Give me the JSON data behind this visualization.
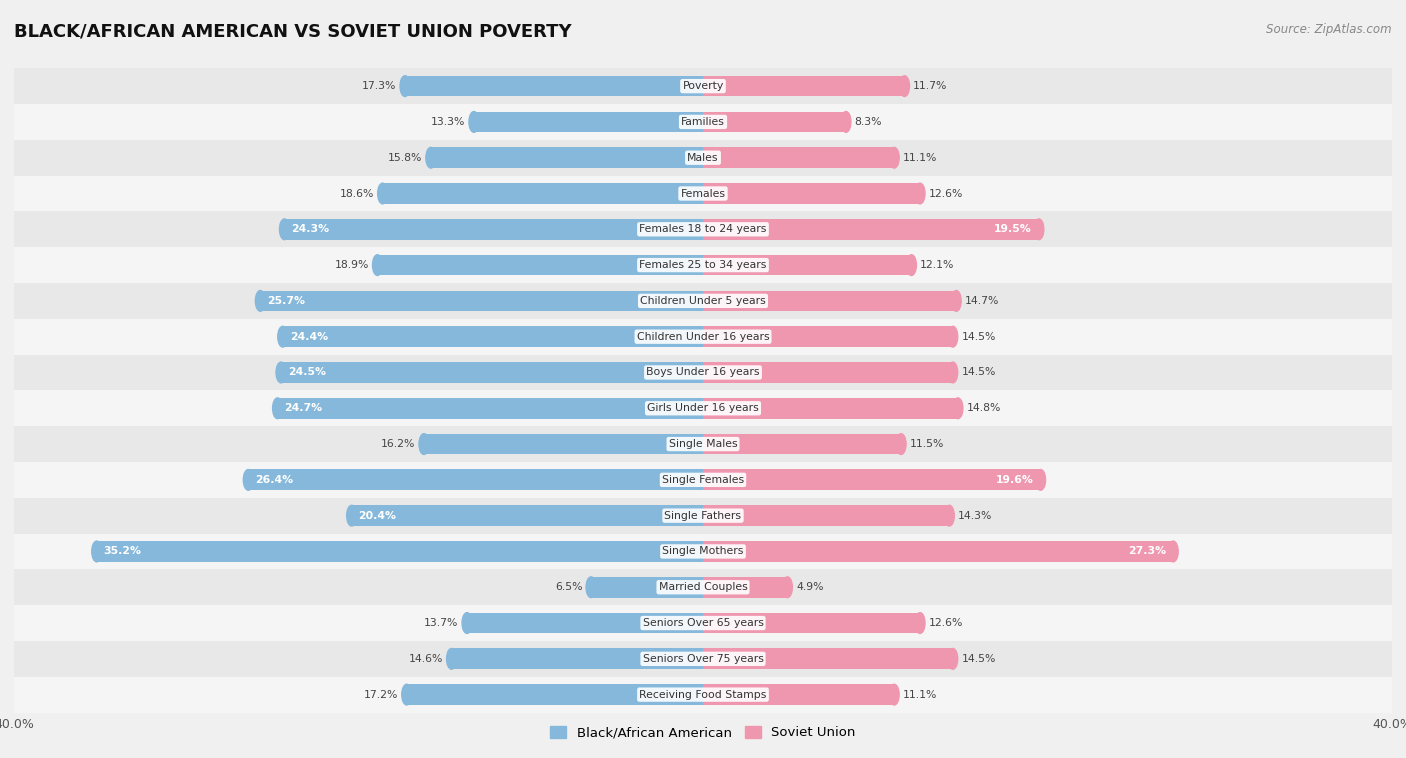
{
  "title": "BLACK/AFRICAN AMERICAN VS SOVIET UNION POVERTY",
  "source": "Source: ZipAtlas.com",
  "categories": [
    "Poverty",
    "Families",
    "Males",
    "Females",
    "Females 18 to 24 years",
    "Females 25 to 34 years",
    "Children Under 5 years",
    "Children Under 16 years",
    "Boys Under 16 years",
    "Girls Under 16 years",
    "Single Males",
    "Single Females",
    "Single Fathers",
    "Single Mothers",
    "Married Couples",
    "Seniors Over 65 years",
    "Seniors Over 75 years",
    "Receiving Food Stamps"
  ],
  "black_values": [
    17.3,
    13.3,
    15.8,
    18.6,
    24.3,
    18.9,
    25.7,
    24.4,
    24.5,
    24.7,
    16.2,
    26.4,
    20.4,
    35.2,
    6.5,
    13.7,
    14.6,
    17.2
  ],
  "soviet_values": [
    11.7,
    8.3,
    11.1,
    12.6,
    19.5,
    12.1,
    14.7,
    14.5,
    14.5,
    14.8,
    11.5,
    19.6,
    14.3,
    27.3,
    4.9,
    12.6,
    14.5,
    11.1
  ],
  "black_color": "#85b8db",
  "soviet_color": "#f097b0",
  "row_color_even": "#f5f5f5",
  "row_color_odd": "#e8e8e8",
  "background_color": "#f0f0f0",
  "axis_limit": 40.0,
  "legend_black": "Black/African American",
  "legend_soviet": "Soviet Union",
  "label_threshold_black": 20.0,
  "label_threshold_soviet": 18.0
}
